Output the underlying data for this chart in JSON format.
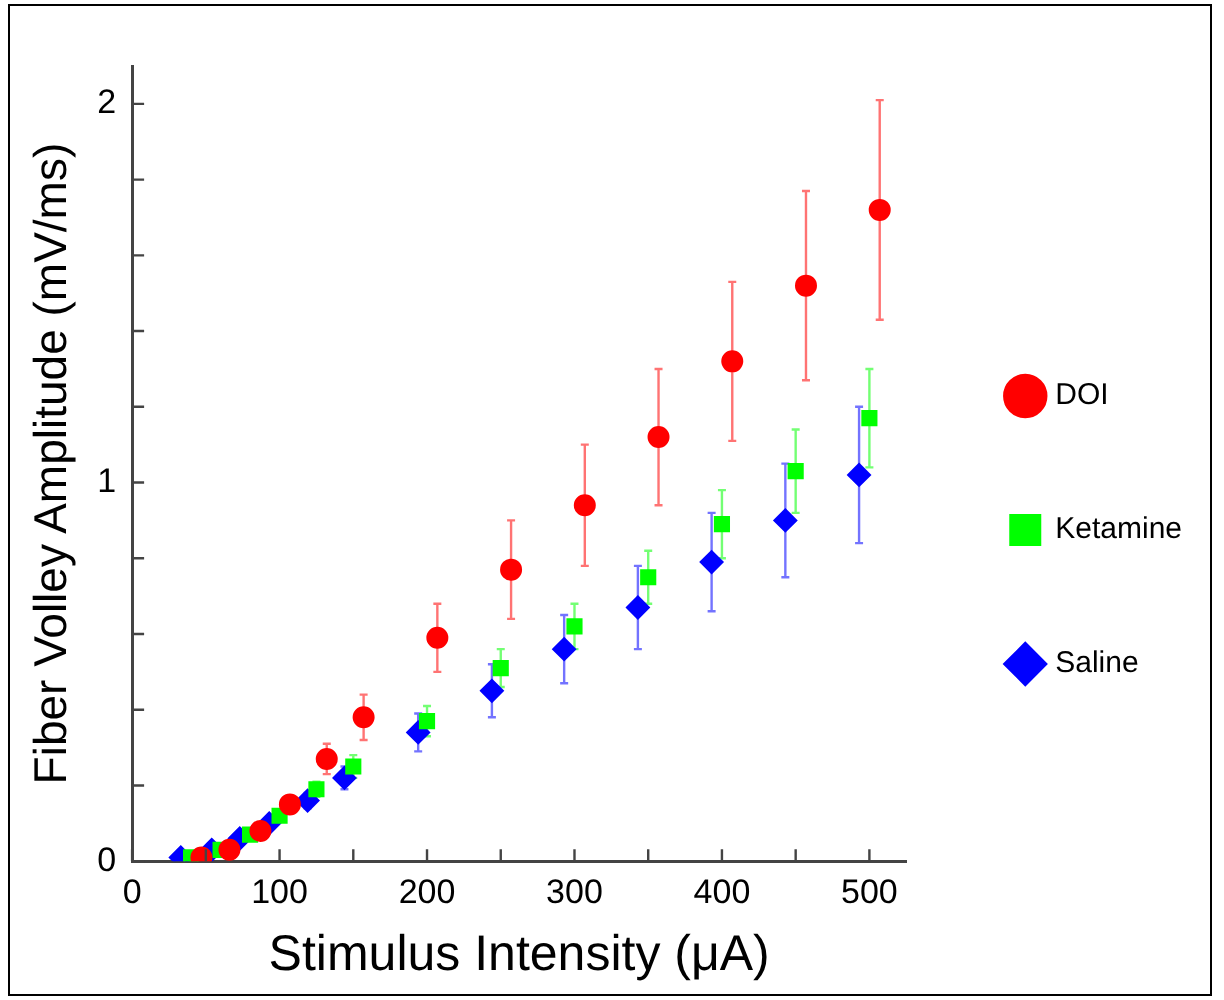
{
  "chart_data": {
    "type": "scatter",
    "xlabel": "Stimulus Intensity (μA)",
    "ylabel": "Fiber Volley Amplitude (mV/ms)",
    "xlim": [
      0,
      525
    ],
    "xticks": [
      0,
      {
        "value": 50,
        "label": null
      },
      100,
      {
        "value": 150,
        "label": null
      },
      200,
      {
        "value": 250,
        "label": null
      },
      300,
      {
        "value": 350,
        "label": null
      },
      400,
      {
        "value": 450,
        "label": null
      },
      500
    ],
    "ylim": [
      0,
      2.1
    ],
    "yticks": [
      0,
      {
        "value": 0.2,
        "label": null
      },
      {
        "value": 0.4,
        "label": null
      },
      {
        "value": 0.6,
        "label": null
      },
      {
        "value": 0.8,
        "label": null
      },
      1,
      {
        "value": 1.2,
        "label": null
      },
      {
        "value": 1.4,
        "label": null
      },
      {
        "value": 1.6,
        "label": null
      },
      {
        "value": 1.8,
        "label": null
      },
      2
    ],
    "grid": false,
    "legend": "right",
    "series": [
      {
        "name": "DOI",
        "color": "#ff0000",
        "marker": "circle",
        "x": [
          47,
          66,
          87,
          107,
          132,
          157,
          207,
          257,
          307,
          357,
          407,
          457,
          507
        ],
        "values": [
          0.01,
          0.03,
          0.08,
          0.15,
          0.27,
          0.38,
          0.59,
          0.77,
          0.94,
          1.12,
          1.32,
          1.52,
          1.72
        ],
        "errors": [
          null,
          null,
          null,
          0.02,
          0.04,
          0.06,
          0.09,
          0.13,
          0.16,
          0.18,
          0.21,
          0.25,
          0.29
        ]
      },
      {
        "name": "Ketamine",
        "color": "#00ff00",
        "marker": "square",
        "x": [
          40,
          60,
          80,
          100,
          125,
          150,
          200,
          250,
          300,
          350,
          400,
          450,
          500
        ],
        "values": [
          0.01,
          0.03,
          0.07,
          0.12,
          0.19,
          0.25,
          0.37,
          0.51,
          0.62,
          0.75,
          0.89,
          1.03,
          1.17
        ],
        "errors": [
          null,
          null,
          null,
          null,
          0.02,
          0.03,
          0.04,
          0.05,
          0.06,
          0.07,
          0.09,
          0.11,
          0.13
        ]
      },
      {
        "name": "Saline",
        "color": "#0000ff",
        "marker": "diamond",
        "x": [
          33,
          54,
          73,
          93,
          119,
          144,
          194,
          244,
          293,
          343,
          393,
          443,
          493
        ],
        "values": [
          0.01,
          0.03,
          0.06,
          0.1,
          0.16,
          0.22,
          0.34,
          0.45,
          0.56,
          0.67,
          0.79,
          0.9,
          1.02
        ],
        "errors": [
          null,
          null,
          null,
          null,
          0.02,
          0.03,
          0.05,
          0.07,
          0.09,
          0.11,
          0.13,
          0.15,
          0.18
        ]
      }
    ]
  }
}
